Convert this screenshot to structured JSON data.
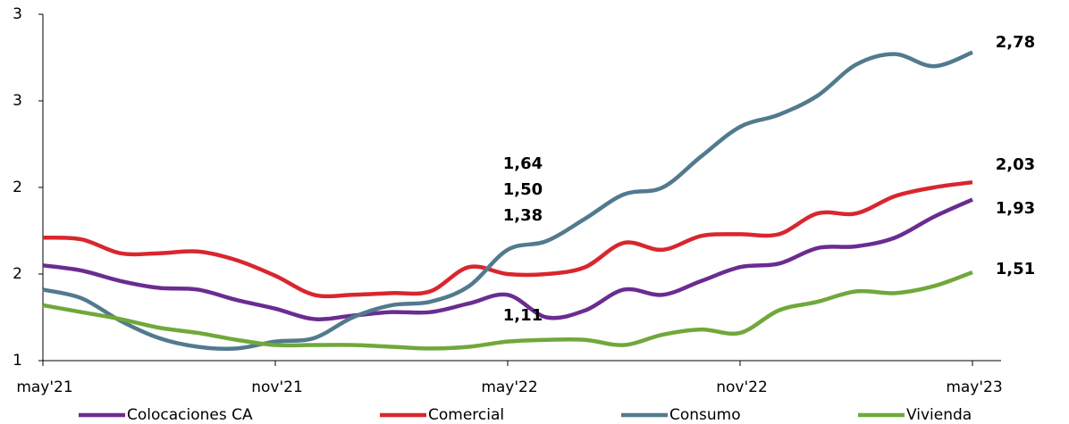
{
  "chart_data": {
    "type": "line",
    "categories": [
      "may'21",
      null,
      null,
      null,
      null,
      null,
      "nov'21",
      null,
      null,
      null,
      null,
      null,
      "may'22",
      null,
      null,
      null,
      null,
      null,
      "nov'22",
      null,
      null,
      null,
      null,
      null,
      "may'23"
    ],
    "ylim": [
      1,
      3
    ],
    "yticks": [
      1,
      {
        "value": 1.5,
        "label": "2"
      },
      2,
      {
        "value": 2.5,
        "label": "3"
      },
      3
    ],
    "grid": false,
    "legend": "bottom",
    "series": [
      {
        "name": "Colocaciones CA",
        "color": "#6a2c91",
        "values": [
          1.55,
          1.52,
          1.46,
          1.42,
          1.41,
          1.35,
          1.3,
          1.24,
          1.26,
          1.28,
          1.28,
          1.33,
          1.38,
          1.25,
          1.29,
          1.41,
          1.38,
          1.46,
          1.54,
          1.56,
          1.65,
          1.66,
          1.71,
          1.83,
          1.93
        ],
        "value_labels": [
          null,
          null,
          null,
          null,
          null,
          null,
          null,
          null,
          null,
          null,
          null,
          null,
          "1,38",
          null,
          null,
          null,
          null,
          null,
          null,
          null,
          null,
          null,
          null,
          null,
          "1,93"
        ]
      },
      {
        "name": "Comercial",
        "color": "#d9262e",
        "values": [
          1.71,
          1.7,
          1.62,
          1.62,
          1.63,
          1.58,
          1.49,
          1.38,
          1.38,
          1.39,
          1.4,
          1.54,
          1.5,
          1.5,
          1.54,
          1.68,
          1.64,
          1.72,
          1.73,
          1.73,
          1.85,
          1.85,
          1.95,
          2.0,
          2.03
        ],
        "value_labels": [
          null,
          null,
          null,
          null,
          null,
          null,
          null,
          null,
          null,
          null,
          null,
          null,
          "1,50",
          null,
          null,
          null,
          null,
          null,
          null,
          null,
          null,
          null,
          null,
          null,
          "2,03"
        ]
      },
      {
        "name": "Consumo",
        "color": "#527a8e",
        "values": [
          1.41,
          1.36,
          1.23,
          1.13,
          1.08,
          1.07,
          1.11,
          1.13,
          1.25,
          1.32,
          1.34,
          1.43,
          1.64,
          1.69,
          1.82,
          1.96,
          2.0,
          2.18,
          2.35,
          2.42,
          2.53,
          2.71,
          2.77,
          2.7,
          2.78
        ],
        "value_labels": [
          null,
          null,
          null,
          null,
          null,
          null,
          null,
          null,
          null,
          null,
          null,
          null,
          "1,64",
          null,
          null,
          null,
          null,
          null,
          null,
          null,
          null,
          null,
          null,
          null,
          "2,78"
        ]
      },
      {
        "name": "Vivienda",
        "color": "#70a83b",
        "values": [
          1.32,
          1.28,
          1.24,
          1.19,
          1.16,
          1.12,
          1.09,
          1.09,
          1.09,
          1.08,
          1.07,
          1.08,
          1.11,
          1.12,
          1.12,
          1.09,
          1.15,
          1.18,
          1.16,
          1.29,
          1.34,
          1.4,
          1.39,
          1.43,
          1.51
        ],
        "value_labels": [
          null,
          null,
          null,
          null,
          null,
          null,
          null,
          null,
          null,
          null,
          null,
          null,
          "1,11",
          null,
          null,
          null,
          null,
          null,
          null,
          null,
          null,
          null,
          null,
          null,
          "1,51"
        ]
      }
    ]
  }
}
